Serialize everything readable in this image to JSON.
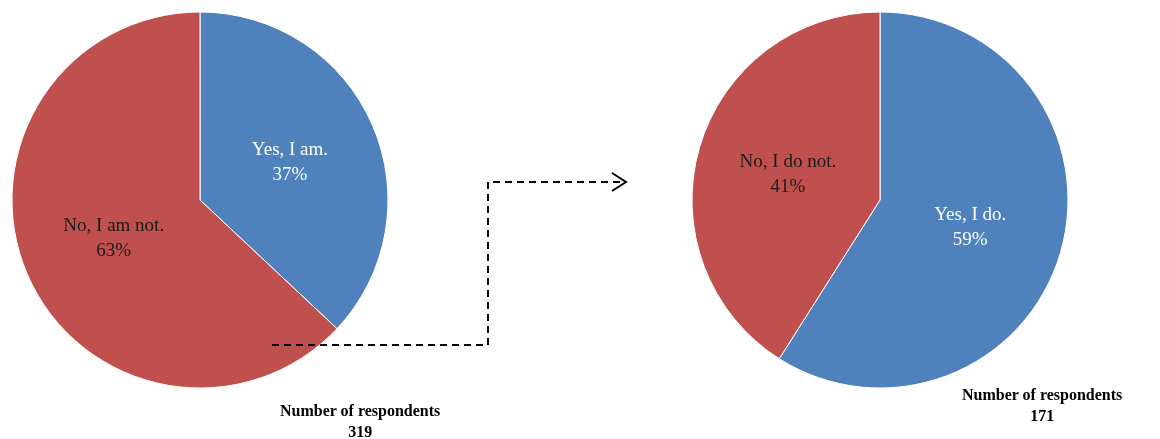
{
  "chart_data": [
    {
      "type": "pie",
      "categories": [
        "Yes, I am.",
        "No, I am not."
      ],
      "values": [
        37,
        63
      ],
      "value_labels": [
        "37%",
        "63%"
      ],
      "colors": [
        "#4f81bd",
        "#c0504d"
      ],
      "annotations": [
        "Number of respondents\n319"
      ]
    },
    {
      "type": "pie",
      "categories": [
        "Yes, I do.",
        "No, I do not."
      ],
      "values": [
        59,
        41
      ],
      "value_labels": [
        "59%",
        "41%"
      ],
      "colors": [
        "#4f81bd",
        "#c0504d"
      ],
      "annotations": [
        "Number of respondents\n171"
      ]
    }
  ]
}
